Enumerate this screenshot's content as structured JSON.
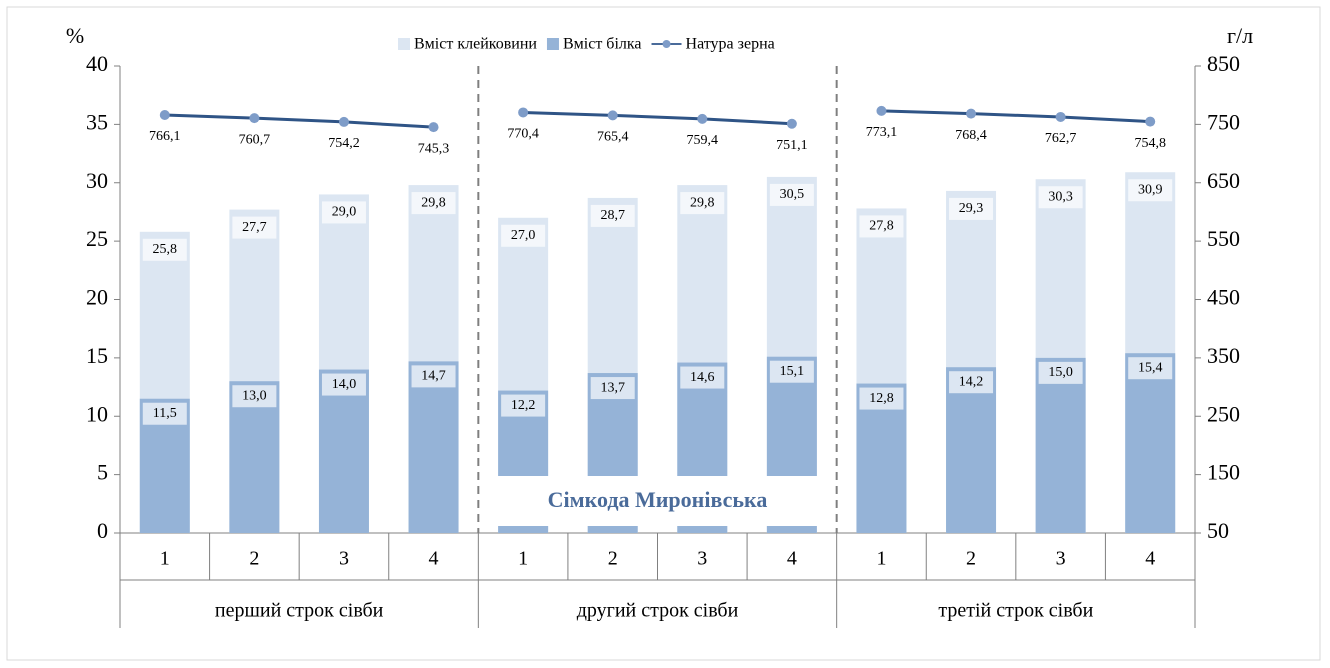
{
  "chart_data": {
    "type": "bar",
    "ylabel": "%",
    "y2label": "г/л",
    "categories": [
      "1",
      "2",
      "3",
      "4",
      "1",
      "2",
      "3",
      "4",
      "1",
      "2",
      "3",
      "4"
    ],
    "groups": [
      "перший строк сівби",
      "другий строк сівби",
      "третій строк сівби"
    ],
    "annotation": "Сімкода Миронівська",
    "series": [
      {
        "name": "Вміст клейковини",
        "type": "bar",
        "color": "#dce6f2",
        "values": [
          25.8,
          27.7,
          29.0,
          29.8,
          27.0,
          28.7,
          29.8,
          30.5,
          27.8,
          29.3,
          30.3,
          30.9
        ],
        "value_labels": [
          "25,8",
          "27,7",
          "29,0",
          "29,8",
          "27,0",
          "28,7",
          "29,8",
          "30,5",
          "27,8",
          "29,3",
          "30,3",
          "30,9"
        ]
      },
      {
        "name": "Вміст білка",
        "type": "bar",
        "color": "#95b3d7",
        "values": [
          11.5,
          13.0,
          14.0,
          14.7,
          12.2,
          13.7,
          14.6,
          15.1,
          12.8,
          14.2,
          15.0,
          15.4
        ],
        "value_labels": [
          "11,5",
          "13,0",
          "14,0",
          "14,7",
          "12,2",
          "13,7",
          "14,6",
          "15,1",
          "12,8",
          "14,2",
          "15,0",
          "15,4"
        ]
      },
      {
        "name": "Натура зерна",
        "type": "line",
        "axis": "y2",
        "color": "#4a6b9a",
        "values": [
          766.1,
          760.7,
          754.2,
          745.3,
          770.4,
          765.4,
          759.4,
          751.1,
          773.1,
          768.4,
          762.7,
          754.8
        ],
        "value_labels": [
          "766,1",
          "760,7",
          "754,2",
          "745,3",
          "770,4",
          "765,4",
          "759,4",
          "751,1",
          "773,1",
          "768,4",
          "762,7",
          "754,8"
        ]
      }
    ],
    "ylim": [
      0,
      40
    ],
    "yticks": [
      0,
      5,
      10,
      15,
      20,
      25,
      30,
      35,
      40
    ],
    "y2lim": [
      50,
      850
    ],
    "y2ticks": [
      50,
      150,
      250,
      350,
      450,
      550,
      650,
      750,
      850
    ],
    "grid": false,
    "legend": "top"
  }
}
